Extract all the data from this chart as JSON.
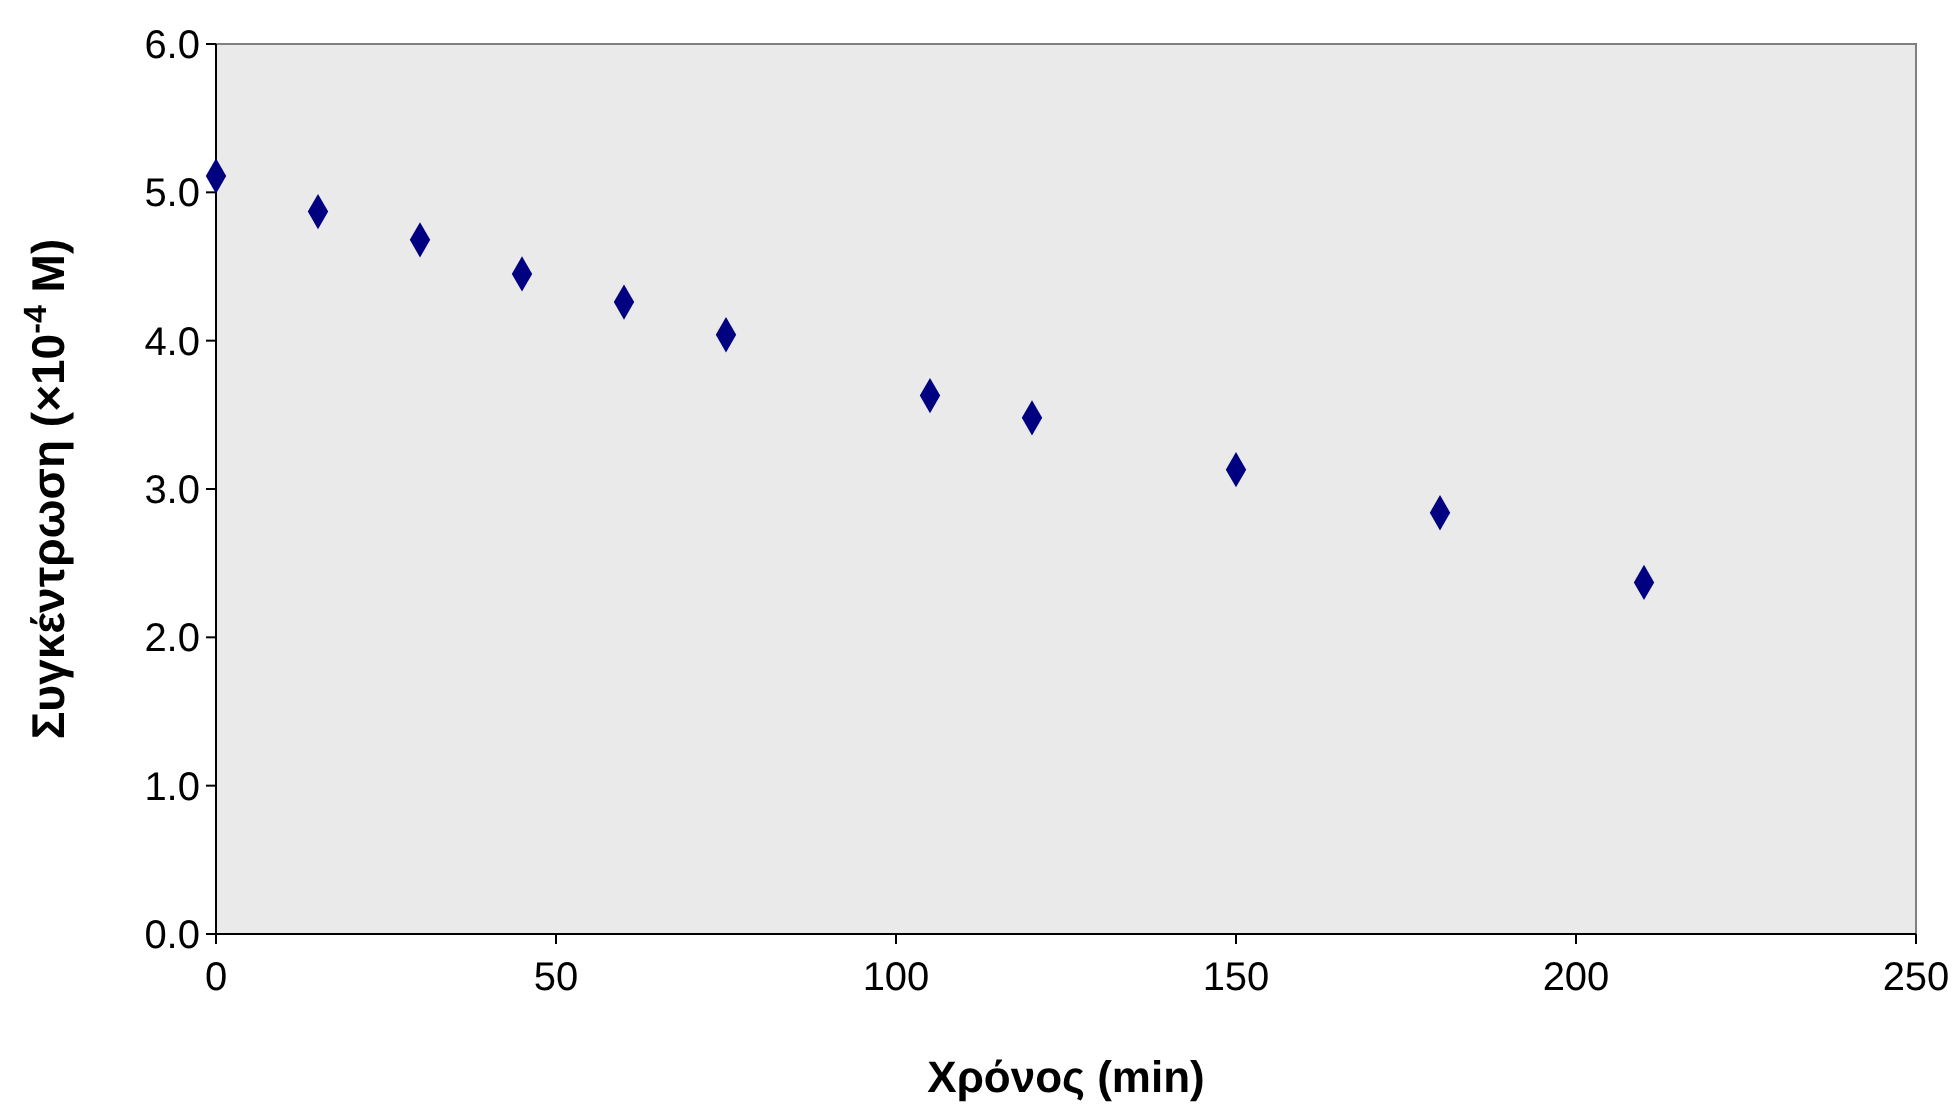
{
  "chart_data": {
    "type": "scatter",
    "xlabel": "Χρόνος (min)",
    "ylabel": "Συγκέντρωση (×10$^{-4}$ M)",
    "x": [
      0,
      15,
      30,
      45,
      60,
      75,
      105,
      120,
      150,
      180,
      210
    ],
    "series": [
      {
        "color": "#000080",
        "values": [
          5.11,
          4.87,
          4.68,
          4.45,
          4.26,
          4.04,
          3.63,
          3.48,
          3.13,
          2.84,
          2.37
        ]
      }
    ],
    "xlim": [
      0,
      250
    ],
    "xticks": [
      0,
      50,
      100,
      150,
      200,
      250
    ],
    "ylim": [
      0,
      6
    ],
    "yticks": [
      {
        "value": 0,
        "label": "0.0"
      },
      {
        "value": 1,
        "label": "1.0"
      },
      {
        "value": 2,
        "label": "2.0"
      },
      {
        "value": 3,
        "label": "3.0"
      },
      {
        "value": 4,
        "label": "4.0"
      },
      {
        "value": 5,
        "label": "5.0"
      },
      {
        "value": 6,
        "label": "6.0"
      }
    ],
    "marker": "diamond",
    "grid": false
  }
}
